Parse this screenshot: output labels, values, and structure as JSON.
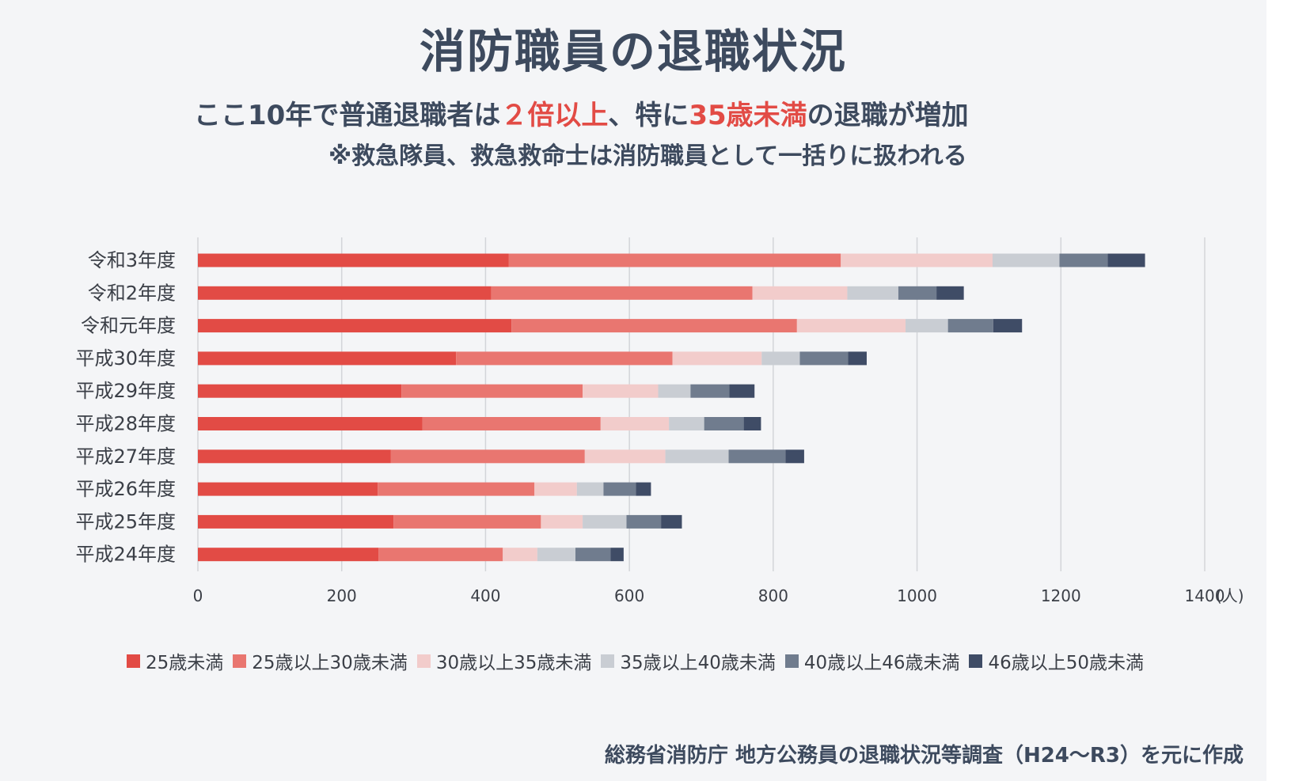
{
  "title": "消防職員の退職状況",
  "subtitle": {
    "part1": "ここ10年で普通退職者は",
    "highlight1": "２倍以上",
    "part2": "、特に",
    "highlight2": "35歳未満",
    "part3": "の退職が増加"
  },
  "note": "※救急隊員、救急救命士は消防職員として一括りに扱われる",
  "source": "総務省消防庁 地方公務員の退職状況等調査（H24〜R3）を元に作成",
  "colors": {
    "accent_red": "#e24b45",
    "text_dark": "#3d4a5e",
    "series": [
      "#e24b45",
      "#e97670",
      "#f2cccb",
      "#c9cdd3",
      "#707c8e",
      "#3f4c66"
    ]
  },
  "chart_data": {
    "type": "bar",
    "orientation": "horizontal",
    "stacked": true,
    "categories": [
      "令和3年度",
      "令和2年度",
      "令和元年度",
      "平成30年度",
      "平成29年度",
      "平成28年度",
      "平成27年度",
      "平成26年度",
      "平成25年度",
      "平成24年度"
    ],
    "series": [
      {
        "name": "25歳未満",
        "values": [
          432,
          408,
          436,
          359,
          283,
          312,
          268,
          250,
          272,
          251
        ]
      },
      {
        "name": "25歳以上30歳未満",
        "values": [
          462,
          363,
          397,
          301,
          252,
          248,
          270,
          218,
          205,
          173
        ]
      },
      {
        "name": "30歳以上35歳未満",
        "values": [
          211,
          132,
          151,
          124,
          105,
          95,
          112,
          59,
          58,
          48
        ]
      },
      {
        "name": "35歳以上40歳未満",
        "values": [
          93,
          71,
          59,
          53,
          45,
          49,
          88,
          37,
          61,
          53
        ]
      },
      {
        "name": "40歳以上46歳未満",
        "values": [
          67,
          53,
          63,
          67,
          54,
          55,
          79,
          45,
          48,
          49
        ]
      },
      {
        "name": "46歳以上50歳未満",
        "values": [
          52,
          38,
          40,
          26,
          35,
          24,
          26,
          21,
          29,
          18
        ]
      }
    ],
    "xlim": [
      0,
      1400
    ],
    "xticks": [
      "0",
      "200",
      "400",
      "600",
      "800",
      "1000",
      "1200",
      "1400"
    ],
    "xunit": "(人)",
    "grid": true,
    "legend_position": "bottom"
  }
}
